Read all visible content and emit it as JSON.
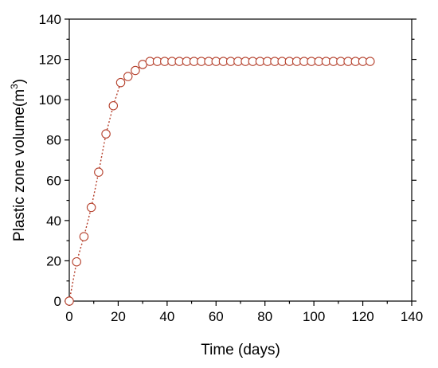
{
  "chart_data": {
    "type": "line",
    "title": "",
    "xlabel": "Time (days)",
    "ylabel": {
      "main": "Plastic zone volume(m",
      "sup": "3",
      "end": ")"
    },
    "xlim": [
      0,
      140
    ],
    "ylim": [
      0,
      140
    ],
    "xticks": [
      "0",
      "20",
      "40",
      "60",
      "80",
      "100",
      "120",
      "140"
    ],
    "yticks": [
      "0",
      "20",
      "40",
      "60",
      "80",
      "100",
      "120",
      "140"
    ],
    "grid": false,
    "legend": "none",
    "marker": "open-circle",
    "line_style": "dotted",
    "series": [
      {
        "x": [
          0,
          3,
          6,
          9,
          12,
          15,
          18,
          21,
          24,
          27,
          30,
          33,
          36,
          39,
          42,
          45,
          48,
          51,
          54,
          57,
          60,
          63,
          66,
          69,
          72,
          75,
          78,
          81,
          84,
          87,
          90,
          93,
          96,
          99,
          102,
          105,
          108,
          111,
          114,
          117,
          120,
          123
        ],
        "y": [
          0,
          19.5,
          32,
          46.5,
          64,
          83,
          97,
          108.5,
          111.5,
          114.5,
          117.5,
          119,
          119,
          119,
          119,
          119,
          119,
          119,
          119,
          119,
          119,
          119,
          119,
          119,
          119,
          119,
          119,
          119,
          119,
          119,
          119,
          119,
          119,
          119,
          119,
          119,
          119,
          119,
          119,
          119,
          119,
          119
        ]
      }
    ]
  },
  "colors": {
    "series": "#b5402c",
    "axis": "#000000",
    "background": "#ffffff"
  }
}
